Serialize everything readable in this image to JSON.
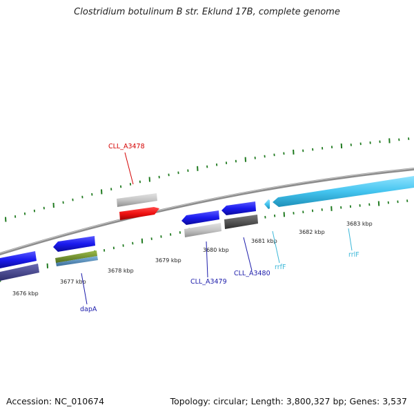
{
  "title": "Clostridium botulinum B str. Eklund 17B, complete genome",
  "accession_text": "Accession: NC_010674",
  "summary_text": "Topology: circular; Length: 3,800,327 bp; Genes: 3,537",
  "colors": {
    "backbone": "#8c8c8c",
    "tick_green": "#1f7a1f",
    "label_red": "#d40000",
    "label_blue": "#1a1aaa",
    "label_cyan": "#3ab7d8"
  },
  "ruler": {
    "tick_labels": [
      "3676 kbp",
      "3677 kbp",
      "3678 kbp",
      "3679 kbp",
      "3680 kbp",
      "3681 kbp",
      "3682 kbp",
      "3683 kbp"
    ]
  },
  "genes": {
    "cll_a3478": {
      "label": "CLL_A3478",
      "strand": "forward",
      "color": "#d40000",
      "shadow_color": "#bdbdbd"
    },
    "cll_a3479": {
      "label": "CLL_A3479",
      "strand": "reverse",
      "color": "#1a1aee",
      "shadow_color": "#bdbdbd"
    },
    "cll_a3480": {
      "label": "CLL_A3480",
      "strand": "reverse",
      "color": "#1a1aee",
      "shadow_color": "#555555"
    },
    "dapA": {
      "label": "dapA",
      "strand": "reverse",
      "color": "#1a1aee",
      "shadow_color": "#5a7f2a"
    },
    "rrfF": {
      "label": "rrfF",
      "strand": "reverse",
      "color": "#3ab7d8"
    },
    "rrlF": {
      "label": "rrlF",
      "strand": "reverse",
      "color": "#44c4ef"
    },
    "unlabeled_left": {
      "strand": "reverse",
      "color": "#1a1aee",
      "shadow_color": "#3d3d8c"
    }
  }
}
